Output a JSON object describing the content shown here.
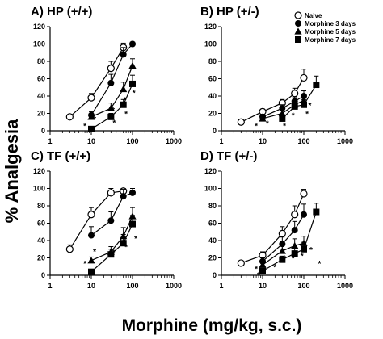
{
  "ylabel": "% Analgesia",
  "xlabel": "Morphine (mg/kg, s.c.)",
  "legend": [
    {
      "label": "Naive",
      "marker": "open-circle"
    },
    {
      "label": "Morphine 3 days",
      "marker": "filled-circle"
    },
    {
      "label": "Morphine 5 days",
      "marker": "filled-triangle"
    },
    {
      "label": "Morphine 7 days",
      "marker": "filled-square"
    }
  ],
  "chart_data": [
    {
      "type": "line",
      "title": "A) HP (+/+)",
      "xscale": "log",
      "xlim": [
        1,
        1000
      ],
      "ylim": [
        0,
        120
      ],
      "xticks": [
        "1",
        "10",
        "100",
        "1000"
      ],
      "yticks": [
        "0",
        "20",
        "40",
        "60",
        "80",
        "100",
        "120"
      ],
      "series": [
        {
          "name": "Naive",
          "x": [
            3,
            10,
            30,
            60
          ],
          "y": [
            16,
            38,
            72,
            96
          ],
          "err": [
            2,
            5,
            8,
            5
          ]
        },
        {
          "name": "Morphine 3 days",
          "x": [
            10,
            30,
            60,
            100
          ],
          "y": [
            18,
            55,
            88,
            100
          ],
          "err": [
            4,
            10,
            8,
            2
          ]
        },
        {
          "name": "Morphine 5 days",
          "x": [
            10,
            30,
            60,
            100
          ],
          "y": [
            16,
            26,
            48,
            75
          ],
          "err": [
            3,
            6,
            8,
            8
          ]
        },
        {
          "name": "Morphine 7 days",
          "x": [
            10,
            30,
            60,
            100
          ],
          "y": [
            2,
            16,
            30,
            54
          ],
          "err": [
            2,
            4,
            6,
            10
          ]
        }
      ],
      "annotations": [
        {
          "text": "*",
          "x": 7,
          "y": 6
        },
        {
          "text": "*",
          "x": 12,
          "y": 14
        },
        {
          "text": "*",
          "x": 34,
          "y": 24
        },
        {
          "text": "*",
          "x": 36,
          "y": 10
        },
        {
          "text": "*",
          "x": 70,
          "y": 20
        },
        {
          "text": "*",
          "x": 66,
          "y": 36
        },
        {
          "text": "*",
          "x": 108,
          "y": 44
        }
      ]
    },
    {
      "type": "line",
      "title": "B) HP (+/-)",
      "xscale": "log",
      "xlim": [
        1,
        1000
      ],
      "ylim": [
        0,
        120
      ],
      "xticks": [
        "1",
        "10",
        "100",
        "1000"
      ],
      "yticks": [
        "0",
        "20",
        "40",
        "60",
        "80",
        "100",
        "120"
      ],
      "series": [
        {
          "name": "Naive",
          "x": [
            3,
            10,
            30,
            60,
            100
          ],
          "y": [
            10,
            22,
            32,
            43,
            61
          ],
          "err": [
            2,
            3,
            4,
            6,
            10
          ]
        },
        {
          "name": "Morphine 3 days",
          "x": [
            10,
            30,
            60,
            100
          ],
          "y": [
            16,
            26,
            34,
            40
          ],
          "err": [
            3,
            4,
            5,
            6
          ]
        },
        {
          "name": "Morphine 5 days",
          "x": [
            10,
            30,
            60,
            100
          ],
          "y": [
            14,
            20,
            30,
            35
          ],
          "err": [
            2,
            4,
            5,
            6
          ]
        },
        {
          "name": "Morphine 7 days",
          "x": [
            30,
            60,
            100,
            200
          ],
          "y": [
            14,
            28,
            30,
            53
          ],
          "err": [
            3,
            5,
            6,
            10
          ]
        }
      ],
      "annotations": [
        {
          "text": "*",
          "x": 7,
          "y": 6
        },
        {
          "text": "*",
          "x": 13,
          "y": 9
        },
        {
          "text": "*",
          "x": 34,
          "y": 6
        },
        {
          "text": "*",
          "x": 55,
          "y": 18
        },
        {
          "text": "*",
          "x": 120,
          "y": 20
        },
        {
          "text": "*",
          "x": 140,
          "y": 30
        }
      ]
    },
    {
      "type": "line",
      "title": "C) TF (+/+)",
      "xscale": "log",
      "xlim": [
        1,
        1000
      ],
      "ylim": [
        0,
        120
      ],
      "xticks": [
        "1",
        "10",
        "100",
        "1000"
      ],
      "yticks": [
        "0",
        "20",
        "40",
        "60",
        "80",
        "100",
        "120"
      ],
      "series": [
        {
          "name": "Naive",
          "x": [
            3,
            10,
            30,
            60
          ],
          "y": [
            30,
            70,
            95,
            97
          ],
          "err": [
            5,
            8,
            5,
            3
          ]
        },
        {
          "name": "Morphine 3 days",
          "x": [
            10,
            30,
            60,
            100
          ],
          "y": [
            46,
            63,
            91,
            95
          ],
          "err": [
            10,
            10,
            8,
            5
          ]
        },
        {
          "name": "Morphine 5 days",
          "x": [
            10,
            30,
            60,
            100
          ],
          "y": [
            17,
            27,
            45,
            68
          ],
          "err": [
            4,
            6,
            10,
            10
          ]
        },
        {
          "name": "Morphine 7 days",
          "x": [
            10,
            30,
            60,
            100
          ],
          "y": [
            4,
            24,
            37,
            59
          ],
          "err": [
            2,
            6,
            10,
            10
          ]
        }
      ],
      "annotations": [
        {
          "text": "*",
          "x": 7,
          "y": 14
        },
        {
          "text": "*",
          "x": 12,
          "y": 28
        },
        {
          "text": "*",
          "x": 35,
          "y": 27
        },
        {
          "text": "*",
          "x": 70,
          "y": 33
        },
        {
          "text": "*",
          "x": 75,
          "y": 53
        },
        {
          "text": "*",
          "x": 120,
          "y": 43
        }
      ]
    },
    {
      "type": "line",
      "title": "D) TF (+/-)",
      "xscale": "log",
      "xlim": [
        1,
        1000
      ],
      "ylim": [
        0,
        120
      ],
      "xticks": [
        "1",
        "10",
        "100",
        "1000"
      ],
      "yticks": [
        "0",
        "20",
        "40",
        "60",
        "80",
        "100",
        "120"
      ],
      "series": [
        {
          "name": "Naive",
          "x": [
            3,
            10,
            30,
            60,
            100
          ],
          "y": [
            14,
            23,
            48,
            70,
            94
          ],
          "err": [
            2,
            4,
            8,
            10,
            5
          ]
        },
        {
          "name": "Morphine 3 days",
          "x": [
            10,
            30,
            60,
            100
          ],
          "y": [
            16,
            36,
            52,
            70
          ],
          "err": [
            4,
            8,
            10,
            12
          ]
        },
        {
          "name": "Morphine 5 days",
          "x": [
            10,
            30,
            60,
            100
          ],
          "y": [
            12,
            28,
            34,
            37
          ],
          "err": [
            3,
            6,
            8,
            8
          ]
        },
        {
          "name": "Morphine 7 days",
          "x": [
            10,
            30,
            60,
            100,
            200
          ],
          "y": [
            5,
            18,
            25,
            30,
            73
          ],
          "err": [
            2,
            4,
            6,
            8,
            10
          ]
        }
      ],
      "annotations": [
        {
          "text": "*",
          "x": 7,
          "y": 8
        },
        {
          "text": "*",
          "x": 8,
          "y": 1
        },
        {
          "text": "*",
          "x": 20,
          "y": 10
        },
        {
          "text": "*",
          "x": 34,
          "y": 20
        },
        {
          "text": "*",
          "x": 55,
          "y": 20
        },
        {
          "text": "*",
          "x": 90,
          "y": 23
        },
        {
          "text": "*",
          "x": 150,
          "y": 30
        },
        {
          "text": "*",
          "x": 240,
          "y": 14
        }
      ]
    }
  ]
}
